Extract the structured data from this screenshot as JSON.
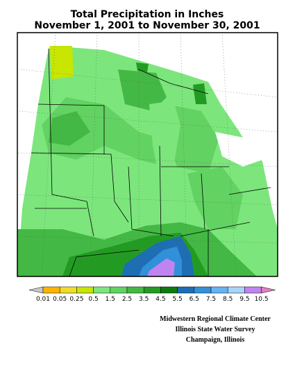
{
  "title": {
    "line1": "Total Precipitation in Inches",
    "line2": "November 1, 2001 to November 30, 2001"
  },
  "legend": {
    "labels": [
      "0.01",
      "0.05",
      "0.25",
      "0.5",
      "1.5",
      "2.5",
      "3.5",
      "4.5",
      "5.5",
      "6.5",
      "7.5",
      "8.5",
      "9.5",
      "10.5"
    ],
    "low_color": "#c8c8c8",
    "colors": [
      "#ffb400",
      "#f0dc28",
      "#c8e600",
      "#7ce67c",
      "#62d262",
      "#44b844",
      "#239b23",
      "#0f7a0f",
      "#1e6eb4",
      "#3290d8",
      "#64b4f0",
      "#a8d4f8",
      "#c084f0"
    ],
    "high_color": "#e080c0"
  },
  "credits": [
    "Midwestern Regional Climate Center",
    "Illinois State Water Survey",
    "Champaign, Illinois"
  ]
}
